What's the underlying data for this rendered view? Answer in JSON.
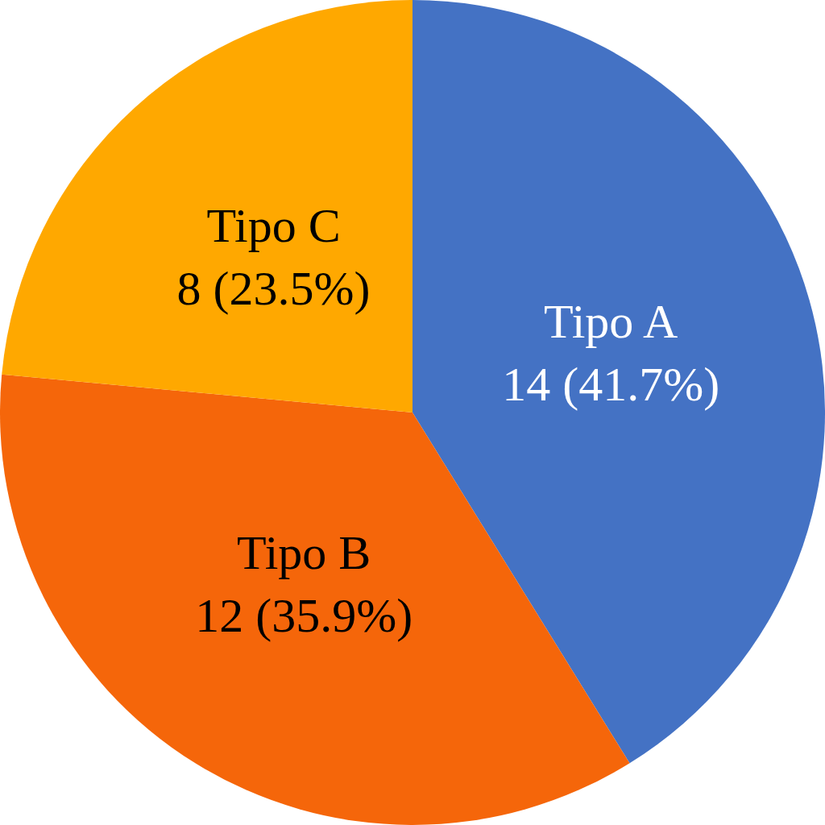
{
  "chart_data": {
    "type": "pie",
    "categories": [
      "Tipo A",
      "Tipo B",
      "Tipo C"
    ],
    "values": [
      14,
      12,
      8
    ],
    "colors": [
      "#4472c4",
      "#f5660a",
      "#ffa800"
    ],
    "value_labels": [
      "14 (41.7%)",
      "12 (35.9%)",
      "8 (23.5%)"
    ]
  }
}
